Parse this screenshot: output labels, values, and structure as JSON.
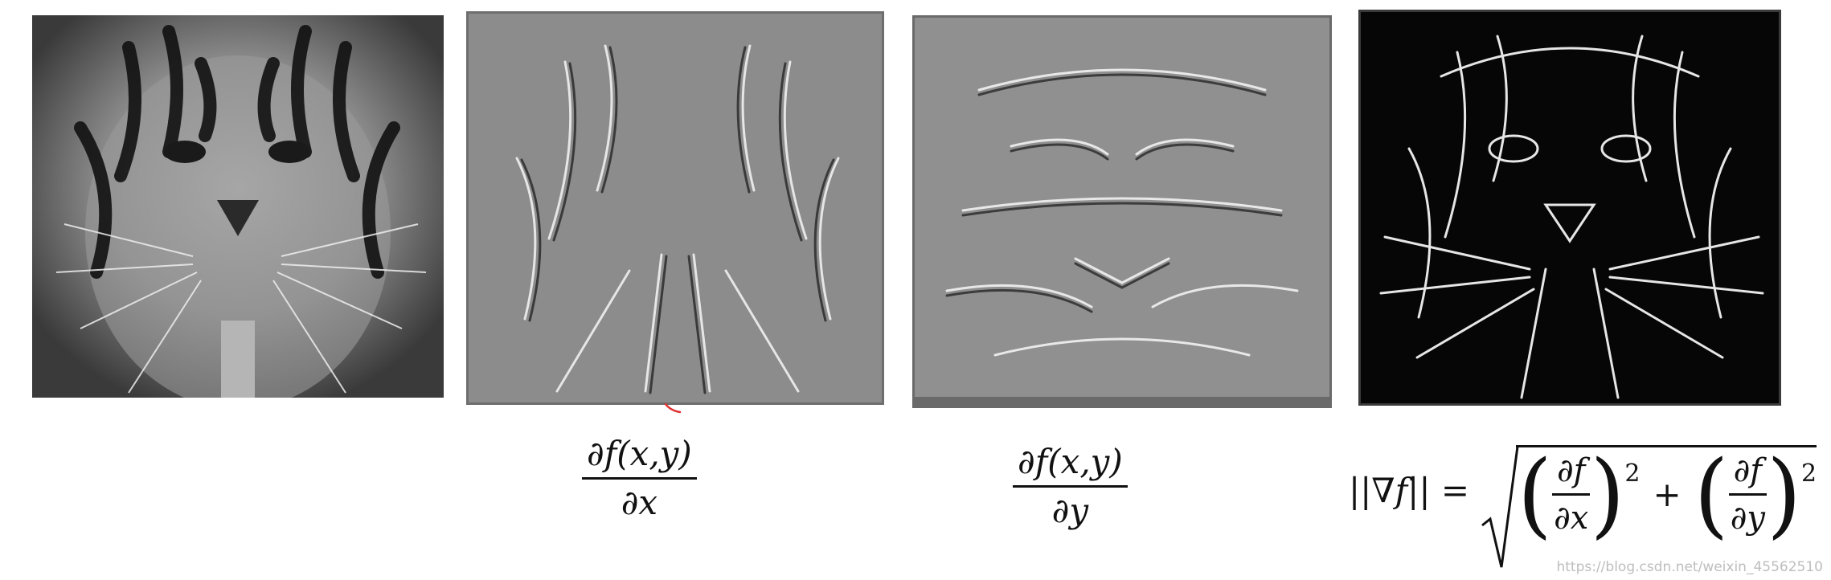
{
  "images": [
    {
      "id": "original",
      "depicts": "tiger-face-grayscale"
    },
    {
      "id": "dx",
      "depicts": "horizontal-gradient-tiger"
    },
    {
      "id": "dy",
      "depicts": "vertical-gradient-tiger"
    },
    {
      "id": "magnitude",
      "depicts": "gradient-magnitude-tiger"
    }
  ],
  "formulas": {
    "dx": {
      "numerator": "∂f(x,y)",
      "denominator": "∂x"
    },
    "dy": {
      "numerator": "∂f(x,y)",
      "denominator": "∂y"
    },
    "magnitude": {
      "lhs": "||∇f|| =",
      "term1_num": "∂f",
      "term1_den": "∂x",
      "term2_num": "∂f",
      "term2_den": "∂y",
      "power": "2",
      "plus": "+",
      "open_paren": "(",
      "close_paren": ")"
    }
  },
  "watermark": "https://blog.csdn.net/weixin_45562510",
  "colors": {
    "accent_mark": "#e03030"
  }
}
